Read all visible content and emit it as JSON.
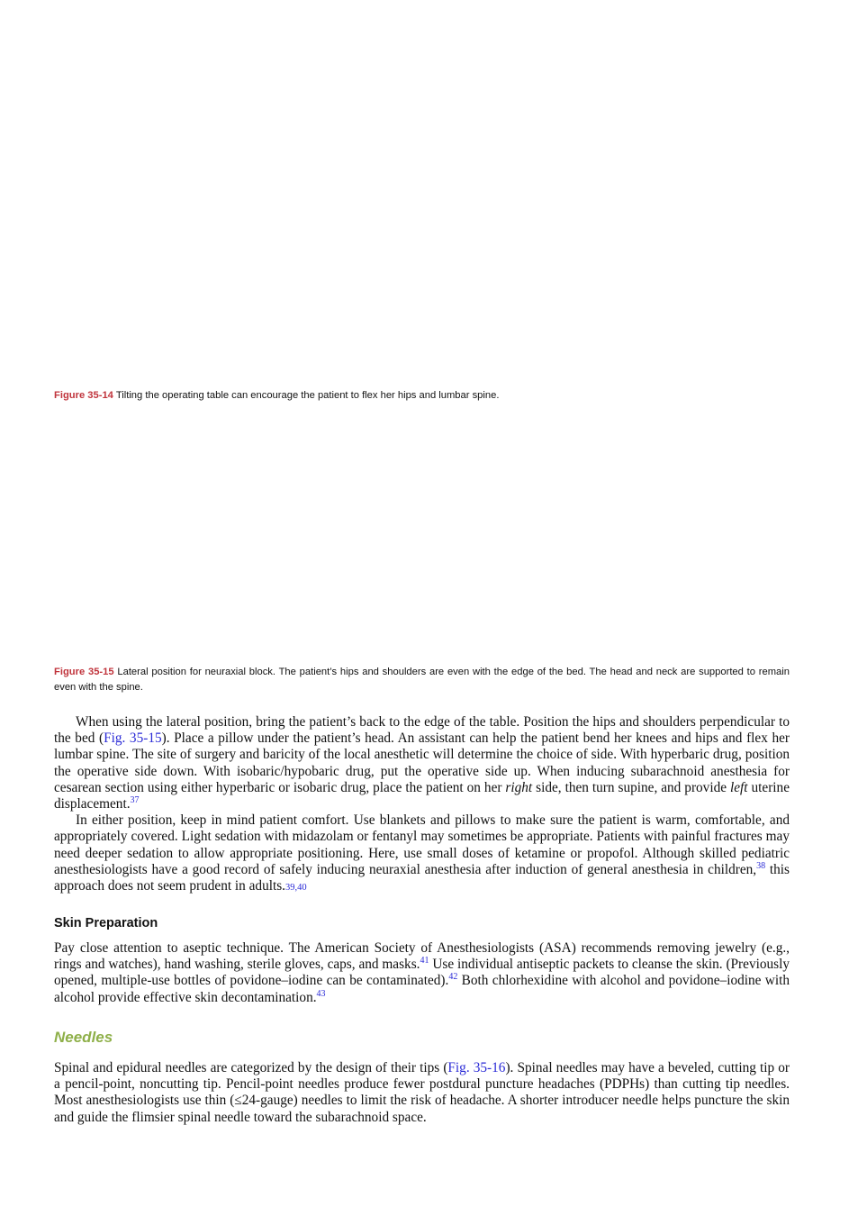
{
  "fig14": {
    "label": "Figure 35-14",
    "text": " Tilting the operating table can encourage the patient to flex her hips and lumbar spine."
  },
  "fig15": {
    "label": "Figure 35-15",
    "text": " Lateral position for neuraxial block. The patient’s hips and shoulders are even with the edge of the bed. The head and neck are supported to remain even with the spine."
  },
  "para1": {
    "a": "When using the lateral position, bring the patient’s back to the edge of the table. Position the hips and shoulders perpendicular to the bed (",
    "fig_ref": "Fig. 35-15",
    "b": "). Place a pillow under the patient’s head. An assistant can help the patient bend her knees and hips and flex her lumbar spine. The site of surgery and baricity of the local anesthetic will determine the choice of side. With hyperbaric drug, position the operative side down. With isobaric/hypobaric drug, put the operative side up. When inducing subarachnoid anesthesia for cesarean section using either hyperbaric or isobaric drug, place the patient on her ",
    "right": "right",
    "c": " side, then turn supine, and provide ",
    "left": "left",
    "d": " uterine displacement.",
    "ref37": "37"
  },
  "para2": {
    "a": "In either position, keep in mind patient comfort. Use blankets and pillows to make sure the patient is warm, comfortable, and appropriately covered. Light sedation with midazolam or fentanyl may sometimes be appropriate. Patients with painful fractures may need deeper sedation to allow appropriate positioning. Here, use small doses of ketamine or propofol. Although skilled pediatric anesthesiologists have a good record of safely inducing neuraxial anesthesia after induction of general anesthesia in children,",
    "ref38": "38",
    "b": " this approach does not seem prudent in adults.",
    "ref3940": "39,40"
  },
  "skin": {
    "heading": "Skin Preparation",
    "a": "Pay close attention to aseptic technique. The American Society of Anesthesiologists (ASA) recommends removing jewelry (e.g., rings and watches), hand washing, sterile gloves, caps, and masks.",
    "ref41": "41",
    "b": " Use individual antiseptic packets to cleanse the skin. (Previously opened, multiple-use bottles of povidone–iodine can be contaminated).",
    "ref42": "42",
    "c": " Both chlorhexidine with alcohol and povidone–iodine with alcohol provide effective skin decontamination.",
    "ref43": "43"
  },
  "needles": {
    "heading": "Needles",
    "a": "Spinal and epidural needles are categorized by the design of their tips (",
    "fig_ref": "Fig. 35-16",
    "b": "). Spinal needles may have a beveled, cutting tip or a pencil-point, noncutting tip. Pencil-point needles produce fewer postdural puncture headaches (PDPHs) than cutting tip needles. Most anesthesiologists use thin (≤24-gauge) needles to limit the risk of headache. A shorter introducer needle helps puncture the skin and guide the flimsier spinal needle toward the subarachnoid space."
  },
  "colors": {
    "caption_label": "#c0343c",
    "reference_link": "#2a2ad6",
    "needles_heading": "#8fb04a"
  }
}
